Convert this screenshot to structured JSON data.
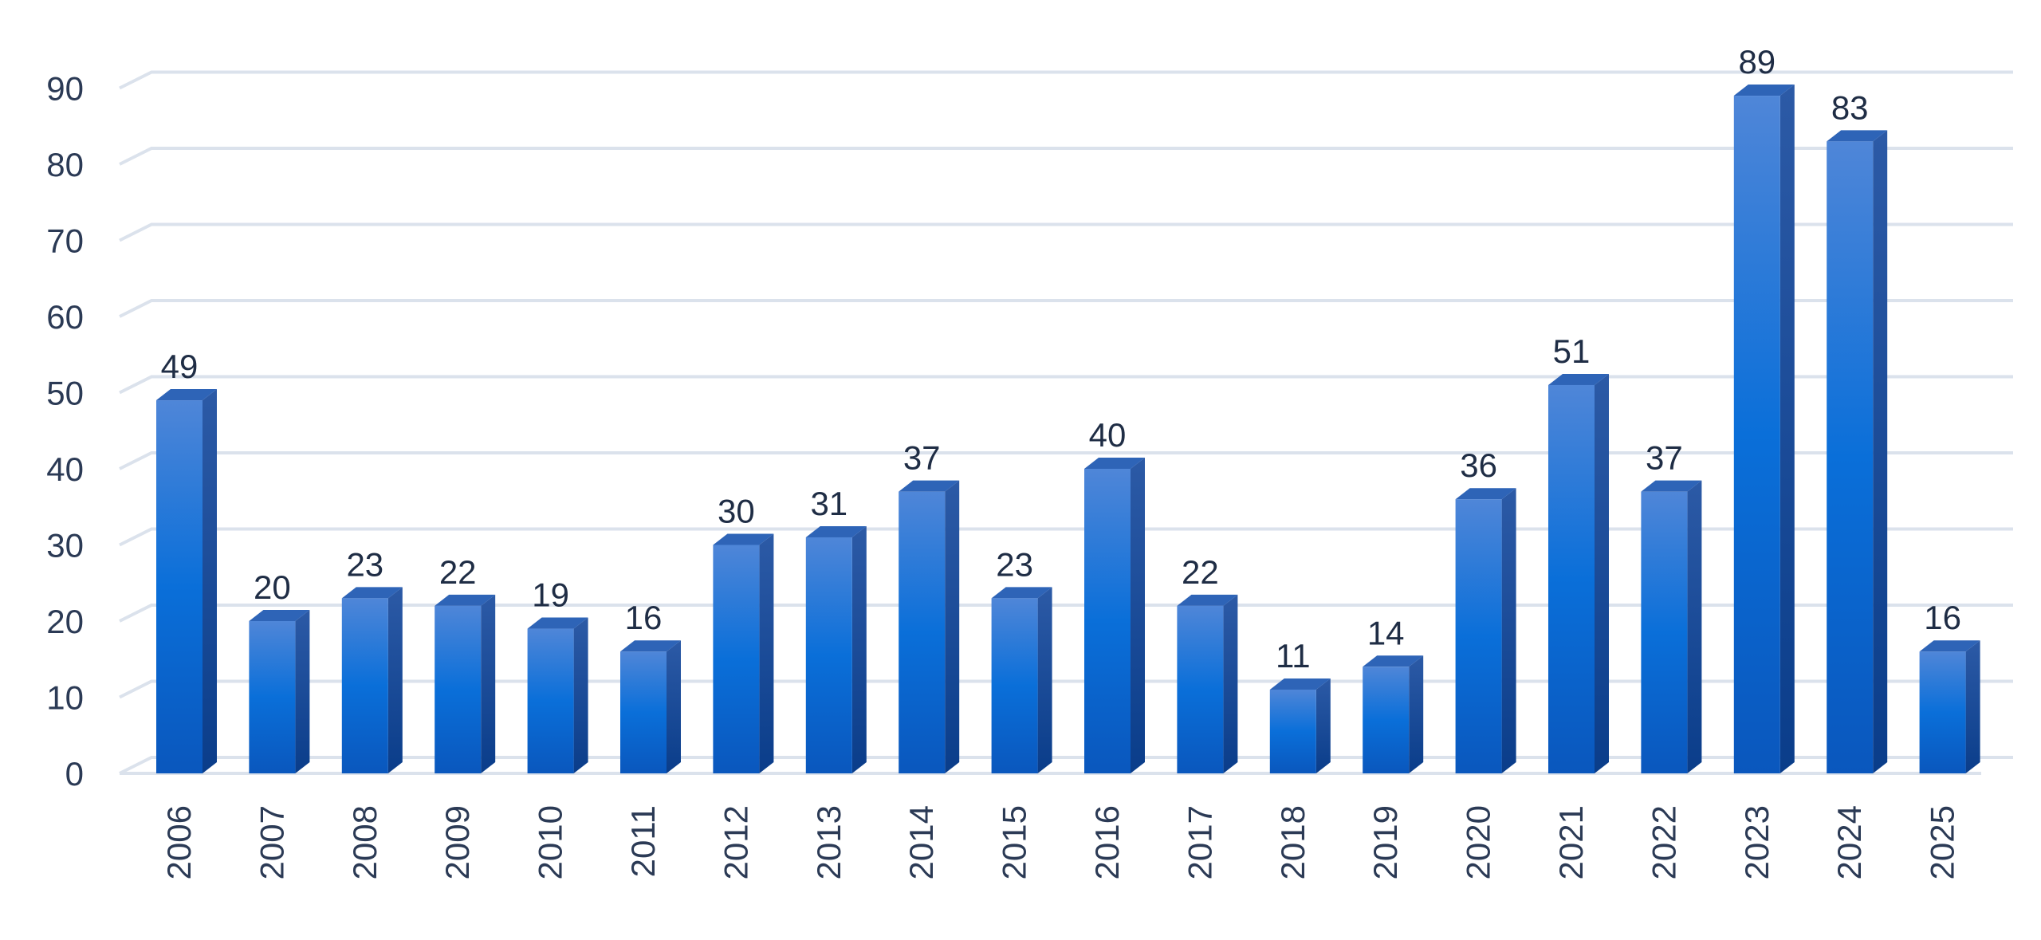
{
  "chart_data": {
    "type": "bar",
    "title": "",
    "xlabel": "",
    "ylabel": "",
    "categories": [
      "2006",
      "2007",
      "2008",
      "2009",
      "2010",
      "2011",
      "2012",
      "2013",
      "2014",
      "2015",
      "2016",
      "2017",
      "2018",
      "2019",
      "2020",
      "2021",
      "2022",
      "2023",
      "2024",
      "2025"
    ],
    "values": [
      49,
      20,
      23,
      22,
      19,
      16,
      30,
      31,
      37,
      23,
      40,
      22,
      11,
      14,
      36,
      51,
      37,
      89,
      83,
      16
    ],
    "ylim": [
      0,
      90
    ],
    "yticks": [
      0,
      10,
      20,
      30,
      40,
      50,
      60,
      70,
      80,
      90
    ],
    "grid": true,
    "style": "3d-column",
    "colors": {
      "bar_top": "#4f86d8",
      "bar_mid": "#0a6fd9",
      "bar_bottom": "#0a57bd",
      "bar_side": "#0c3f8f",
      "bar_cap": "#2e64b7",
      "grid": "#dbe2ec",
      "text": "#2b3a55"
    }
  }
}
